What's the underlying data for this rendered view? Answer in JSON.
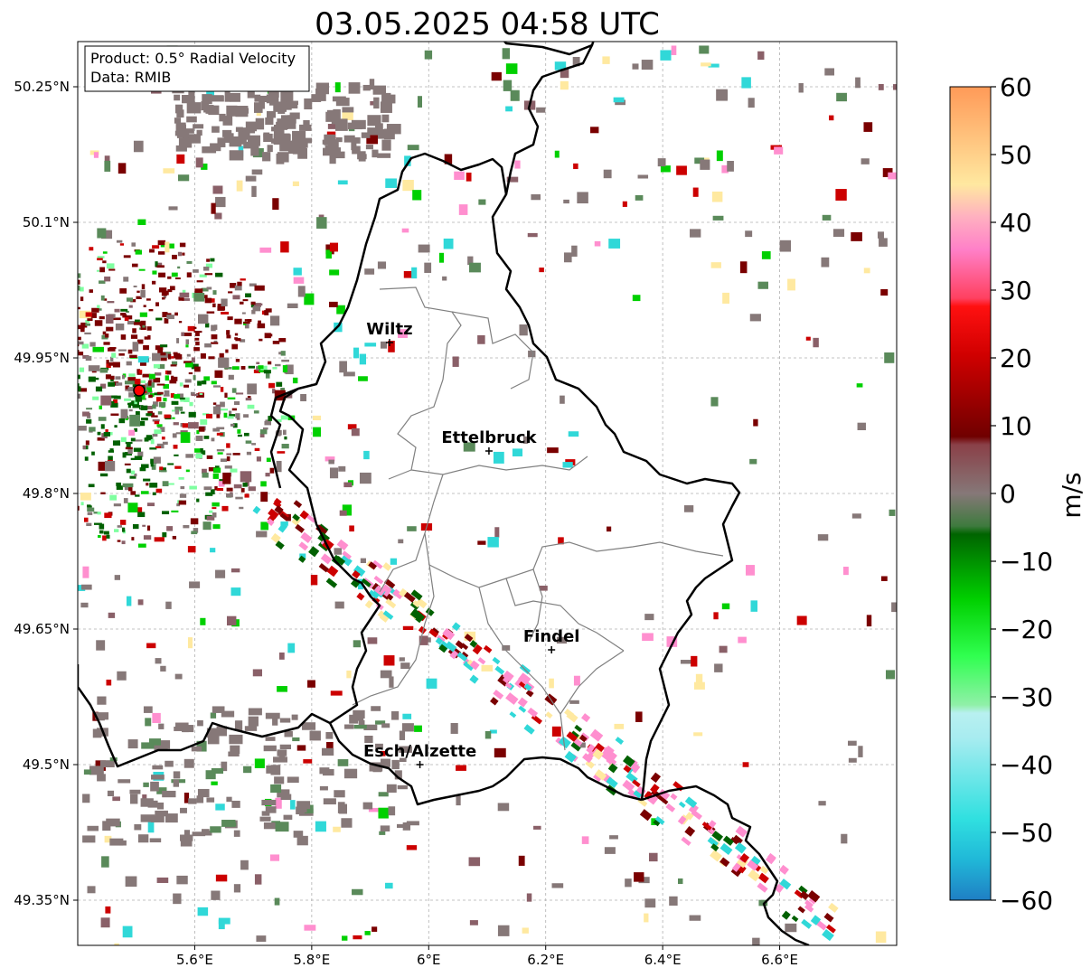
{
  "title": "03.05.2025 04:58 UTC",
  "info": {
    "product": "Product: 0.5° Radial Velocity",
    "data": "Data: RMIB"
  },
  "map": {
    "lon_range": [
      5.4,
      6.8
    ],
    "lat_range": [
      49.3,
      50.3
    ],
    "lon_ticks": [
      5.6,
      5.8,
      6.0,
      6.2,
      6.4,
      6.6
    ],
    "lon_tick_labels": [
      "5.6°E",
      "5.8°E",
      "6°E",
      "6.2°E",
      "6.4°E",
      "6.6°E"
    ],
    "lat_ticks": [
      50.25,
      50.1,
      49.95,
      49.8,
      49.65,
      49.5,
      49.35
    ],
    "lat_tick_labels": [
      "50.25°N",
      "50.1°N",
      "49.95°N",
      "49.8°N",
      "49.65°N",
      "49.5°N",
      "49.35°N"
    ],
    "grid": true,
    "radar_site": {
      "lon": 5.505,
      "lat": 49.914
    },
    "cities": [
      {
        "name": "Wiltz",
        "lon": 5.933,
        "lat": 49.967
      },
      {
        "name": "Ettelbruck",
        "lon": 6.103,
        "lat": 49.847
      },
      {
        "name": "Findel",
        "lon": 6.21,
        "lat": 49.627
      },
      {
        "name": "Esch/Alzette",
        "lon": 5.985,
        "lat": 49.5
      }
    ]
  },
  "colorbar": {
    "label": "m/s",
    "range": [
      -60,
      60
    ],
    "ticks": [
      60,
      50,
      40,
      30,
      20,
      10,
      0,
      -10,
      -20,
      -30,
      -40,
      -50,
      -60
    ],
    "tick_labels": [
      "60",
      "50",
      "40",
      "30",
      "20",
      "10",
      "0",
      "−10",
      "−20",
      "−30",
      "−40",
      "−50",
      "−60"
    ],
    "colors": {
      "60": "#ff9f5a",
      "50": "#ffe9a0",
      "40": "#ff8fcf",
      "30": "#ff0000",
      "20": "#cc0000",
      "10": "#7a0000",
      "5": "#8a6068",
      "0": "#867878",
      "-5": "#5a8a5a",
      "-10": "#006000",
      "-20": "#00d000",
      "-30": "#7fffa0",
      "-35": "#b0f0f0",
      "-50": "#30d8d8",
      "-60": "#2080c0"
    }
  },
  "legend_placement": "top-left"
}
